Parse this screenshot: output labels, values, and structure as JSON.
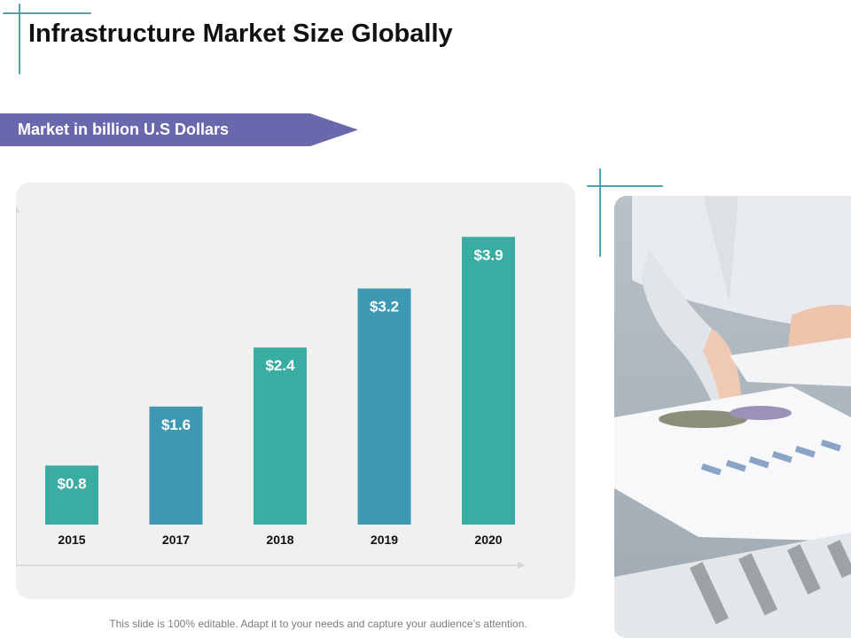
{
  "slide": {
    "title": "Infrastructure Market Size Globally",
    "banner_label": "Market in billion U.S Dollars",
    "footer": "This slide is 100% editable. Adapt it to your needs and capture your audience’s attention."
  },
  "colors": {
    "banner": "#6a68ad",
    "teal": "#3aada2",
    "blue": "#3f98b2",
    "accent_line": "#3a9aa8",
    "panel": "#f0f0f1"
  },
  "photo": {
    "description_icon": "business-meeting-photo"
  },
  "chart_data": {
    "type": "bar",
    "categories": [
      "2015",
      "2017",
      "2018",
      "2019",
      "2020"
    ],
    "values": [
      0.8,
      1.6,
      2.4,
      3.2,
      3.9
    ],
    "value_labels": [
      "$0.8",
      "$1.6",
      "$2.4",
      "$3.2",
      "$3.9"
    ],
    "bar_colors": [
      "#3aada2",
      "#3f98b2",
      "#3aada2",
      "#3f98b2",
      "#3aada2"
    ],
    "ylim": [
      0,
      4.3
    ],
    "grid": false,
    "xlabel": "",
    "ylabel": ""
  }
}
